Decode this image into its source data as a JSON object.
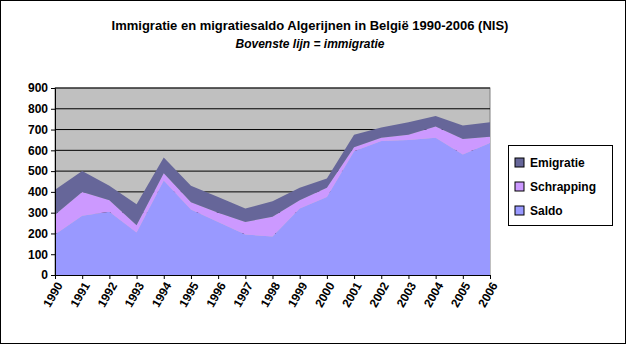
{
  "chart_data": {
    "type": "area",
    "title": "Immigratie en migratiesaldo Algerijnen in België 1990-2006 (NIS)",
    "subtitle": "Bovenste lijn = immigratie",
    "categories": [
      "1990",
      "1991",
      "1992",
      "1993",
      "1994",
      "1995",
      "1996",
      "1997",
      "1998",
      "1999",
      "2000",
      "2001",
      "2002",
      "2003",
      "2004",
      "2005",
      "2006"
    ],
    "series": [
      {
        "name": "Saldo",
        "color": "#9999ff",
        "values": [
          195,
          285,
          305,
          205,
          455,
          315,
          255,
          195,
          185,
          320,
          375,
          595,
          645,
          650,
          660,
          580,
          635
        ]
      },
      {
        "name": "Schrapping",
        "color": "#cc99ff",
        "values": [
          95,
          115,
          55,
          35,
          35,
          35,
          45,
          60,
          95,
          40,
          45,
          20,
          15,
          25,
          55,
          75,
          30
        ]
      },
      {
        "name": "Emigratie",
        "color": "#666699",
        "values": [
          120,
          100,
          70,
          100,
          75,
          80,
          75,
          65,
          75,
          60,
          45,
          60,
          50,
          60,
          50,
          65,
          70
        ]
      }
    ],
    "stacked": true,
    "ylim": [
      0,
      900
    ],
    "yticks": [
      0,
      100,
      200,
      300,
      400,
      500,
      600,
      700,
      800,
      900
    ],
    "grid": true,
    "legend": "right"
  }
}
